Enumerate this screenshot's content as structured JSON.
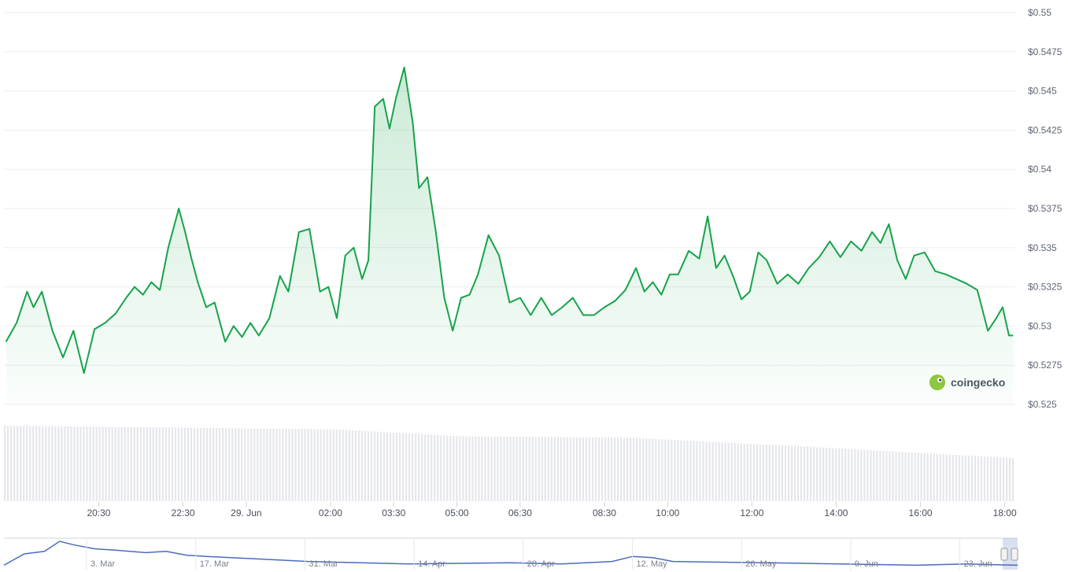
{
  "chart_data": {
    "type": "area",
    "title": "",
    "xlabel": "",
    "ylabel": "",
    "ylim": [
      0.525,
      0.55
    ],
    "grid": true,
    "legend": "none",
    "y_ticks": [
      "$0.525",
      "$0.5275",
      "$0.53",
      "$0.5325",
      "$0.535",
      "$0.5375",
      "$0.54",
      "$0.5425",
      "$0.545",
      "$0.5475",
      "$0.55"
    ],
    "y_tick_values": [
      0.525,
      0.5275,
      0.53,
      0.5325,
      0.535,
      0.5375,
      0.54,
      0.5425,
      0.545,
      0.5475,
      0.55
    ],
    "x_ticks": [
      "20:30",
      "22:30",
      "29. Jun",
      "02:00",
      "03:30",
      "05:00",
      "06:30",
      "08:30",
      "10:00",
      "12:00",
      "14:00",
      "16:00",
      "18:00"
    ],
    "x_tick_hours": [
      -3.5,
      -1.5,
      0,
      2,
      3.5,
      5,
      6.5,
      8.5,
      10,
      12,
      14,
      16,
      18
    ],
    "series": [
      {
        "color": "#16a34a",
        "x_hours": [
          -5.7,
          -5.45,
          -5.2,
          -5.05,
          -4.85,
          -4.6,
          -4.35,
          -4.1,
          -3.85,
          -3.6,
          -3.35,
          -3.1,
          -2.85,
          -2.65,
          -2.45,
          -2.25,
          -2.05,
          -1.85,
          -1.6,
          -1.45,
          -1.3,
          -1.15,
          -0.95,
          -0.75,
          -0.5,
          -0.3,
          -0.1,
          0.1,
          0.3,
          0.55,
          0.8,
          1.0,
          1.25,
          1.5,
          1.75,
          1.95,
          2.15,
          2.35,
          2.55,
          2.75,
          2.9,
          3.05,
          3.25,
          3.4,
          3.55,
          3.75,
          3.95,
          4.1,
          4.3,
          4.5,
          4.7,
          4.9,
          5.1,
          5.3,
          5.5,
          5.75,
          6.0,
          6.25,
          6.5,
          6.75,
          7.0,
          7.25,
          7.5,
          7.75,
          8.0,
          8.25,
          8.5,
          8.75,
          9.0,
          9.25,
          9.45,
          9.65,
          9.85,
          10.05,
          10.25,
          10.5,
          10.75,
          10.95,
          11.15,
          11.35,
          11.55,
          11.75,
          11.95,
          12.15,
          12.35,
          12.6,
          12.85,
          13.1,
          13.35,
          13.6,
          13.85,
          14.1,
          14.35,
          14.6,
          14.85,
          15.05,
          15.25,
          15.45,
          15.65,
          15.85,
          16.1,
          16.35,
          16.6,
          16.85,
          17.1,
          17.35,
          17.6,
          17.8,
          17.95,
          18.1,
          18.2
        ],
        "values": [
          0.529,
          0.5302,
          0.5322,
          0.5312,
          0.5322,
          0.5297,
          0.528,
          0.5297,
          0.527,
          0.5298,
          0.5302,
          0.5308,
          0.5318,
          0.5325,
          0.532,
          0.5328,
          0.5323,
          0.535,
          0.5375,
          0.536,
          0.5343,
          0.5328,
          0.5312,
          0.5315,
          0.529,
          0.53,
          0.5293,
          0.5302,
          0.5294,
          0.5305,
          0.5332,
          0.5322,
          0.536,
          0.5362,
          0.5322,
          0.5325,
          0.5305,
          0.5345,
          0.535,
          0.533,
          0.5342,
          0.544,
          0.5445,
          0.5426,
          0.5445,
          0.5465,
          0.543,
          0.5388,
          0.5395,
          0.536,
          0.5318,
          0.5297,
          0.5318,
          0.532,
          0.5333,
          0.5358,
          0.5345,
          0.5315,
          0.5318,
          0.5307,
          0.5318,
          0.5307,
          0.5312,
          0.5318,
          0.5307,
          0.5307,
          0.5312,
          0.5316,
          0.5323,
          0.5337,
          0.5322,
          0.5328,
          0.532,
          0.5333,
          0.5333,
          0.5348,
          0.5343,
          0.537,
          0.5337,
          0.5345,
          0.5332,
          0.5317,
          0.5322,
          0.5347,
          0.5342,
          0.5327,
          0.5333,
          0.5327,
          0.5337,
          0.5344,
          0.5354,
          0.5344,
          0.5354,
          0.5348,
          0.536,
          0.5353,
          0.5365,
          0.5342,
          0.533,
          0.5345,
          0.5347,
          0.5335,
          0.5333,
          0.533,
          0.5327,
          0.5323,
          0.5297,
          0.5305,
          0.5312,
          0.5294,
          0.5294
        ]
      }
    ],
    "volume": {
      "color": "#e5e7eb",
      "relative_levels_x": [
        0,
        0.33,
        0.45,
        0.62,
        0.8,
        1.0
      ],
      "relative_levels": [
        1.0,
        0.95,
        0.86,
        0.84,
        0.72,
        0.57
      ]
    },
    "navigator": {
      "x_ticks": [
        "3. Mar",
        "17. Mar",
        "31. Mar",
        "14. Apr",
        "28. Apr",
        "12. May",
        "26. May",
        "9. Jun",
        "23. Jun"
      ],
      "line_color": "#4b6bbf",
      "relative_values_x": [
        0,
        0.02,
        0.04,
        0.055,
        0.07,
        0.09,
        0.11,
        0.14,
        0.16,
        0.18,
        0.2,
        0.25,
        0.3,
        0.4,
        0.5,
        0.55,
        0.6,
        0.62,
        0.64,
        0.66,
        0.8,
        0.9,
        0.95,
        1.0
      ],
      "relative_values": [
        0.05,
        0.5,
        0.6,
        1.0,
        0.85,
        0.7,
        0.65,
        0.55,
        0.6,
        0.45,
        0.4,
        0.3,
        0.2,
        0.1,
        0.15,
        0.1,
        0.2,
        0.4,
        0.35,
        0.2,
        0.12,
        0.05,
        0.1,
        0.05
      ]
    },
    "watermark": "coingecko"
  }
}
